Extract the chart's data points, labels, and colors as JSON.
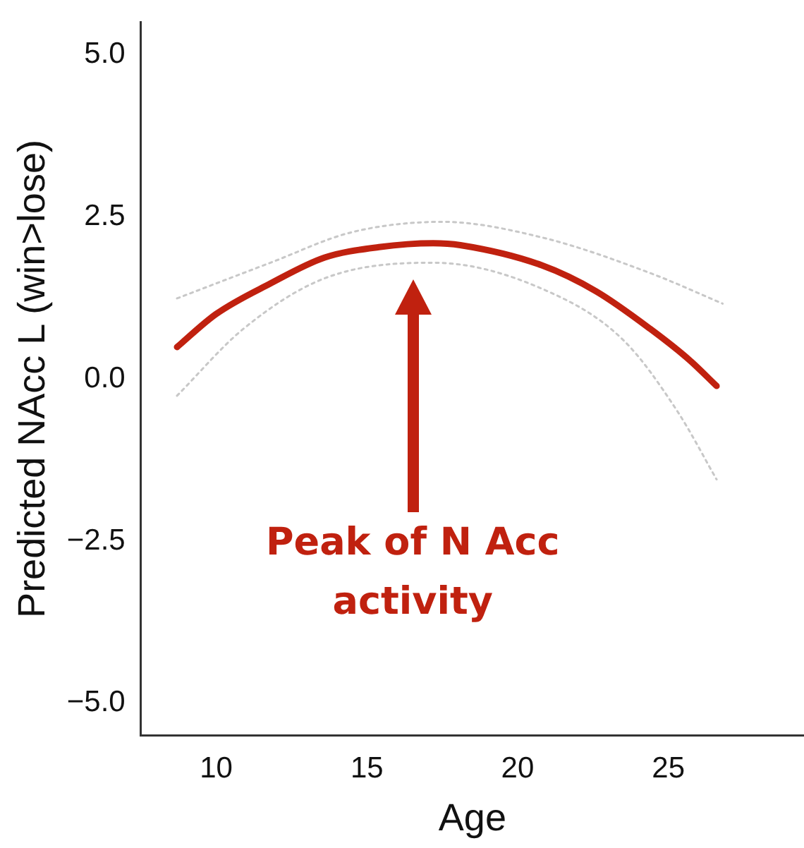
{
  "chart_data": {
    "type": "line",
    "xlabel": "Age",
    "ylabel": "Predicted NAcc L (win>lose)",
    "xlim": [
      7.5,
      29.5
    ],
    "xticks": [
      10,
      15,
      20,
      25
    ],
    "ylim": [
      -5.5,
      5.5
    ],
    "yticks": [
      {
        "value": 5,
        "label": "5.0"
      },
      {
        "value": 2.5,
        "label": "2.5"
      },
      {
        "value": 0,
        "label": "0.0"
      },
      {
        "value": -2.5,
        "label": "−2.5"
      },
      {
        "value": -5,
        "label": "−5.0"
      }
    ],
    "grid": false,
    "legend": false,
    "marker": "none",
    "series": [
      {
        "color": "#c0210f",
        "line_style": "solid",
        "x": [
          8.7,
          10,
          11.8,
          13.6,
          15.4,
          17.2,
          18.1,
          20.8,
          22.6,
          24.4,
          25.7,
          26.6
        ],
        "values": [
          0.49,
          1.0,
          1.47,
          1.87,
          2.03,
          2.09,
          2.06,
          1.75,
          1.35,
          0.77,
          0.29,
          -0.11
        ]
      },
      {
        "color": "#c8c8c8",
        "line_style": "dotted",
        "x": [
          8.7,
          11.8,
          14.5,
          17.5,
          20.8,
          24.4,
          26.8
        ],
        "values": [
          1.24,
          1.79,
          2.26,
          2.42,
          2.18,
          1.63,
          1.16
        ]
      },
      {
        "color": "#c8c8c8",
        "line_style": "dotted",
        "x": [
          8.7,
          10.9,
          13.6,
          17.2,
          20.8,
          23.5,
          25.3,
          26.6
        ],
        "values": [
          -0.26,
          0.77,
          1.55,
          1.79,
          1.39,
          0.6,
          -0.5,
          -1.55
        ]
      }
    ],
    "annotations": [
      "Peak of N Acc activity"
    ]
  }
}
